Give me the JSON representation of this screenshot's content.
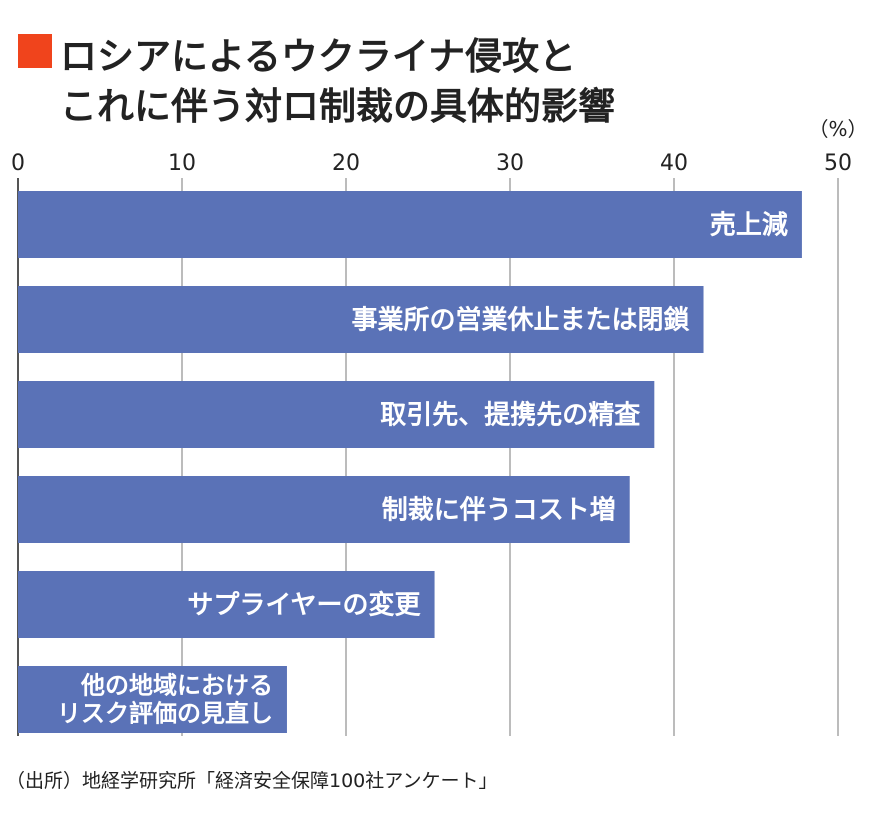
{
  "title": {
    "line1": "ロシアによるウクライナ侵攻と",
    "line2": "これに伴う対ロ制裁の具体的影響"
  },
  "chart_data": {
    "type": "bar",
    "orientation": "horizontal",
    "title": "ロシアによるウクライナ侵攻とこれに伴う対ロ制裁の具体的影響",
    "unit_label": "（%）",
    "xlim": [
      0,
      50
    ],
    "ticks": [
      0,
      10,
      20,
      30,
      40,
      50
    ],
    "grid": true,
    "categories": [
      "売上減",
      "事業所の営業休止または閉鎖",
      "取引先、提携先の精査",
      "制裁に伴うコスト増",
      "サプライヤーの変更",
      "他の地域における\nリスク評価の見直し"
    ],
    "values": [
      47.8,
      41.8,
      38.8,
      37.3,
      25.4,
      16.4
    ],
    "bar_color": "#5a72b7",
    "grid_color": "#a6a6a6"
  },
  "source": "（出所）地経学研究所「経済安全保障100社アンケート」",
  "colors": {
    "accent": "#f0441c",
    "bar": "#5a72b7",
    "text": "#222222"
  }
}
